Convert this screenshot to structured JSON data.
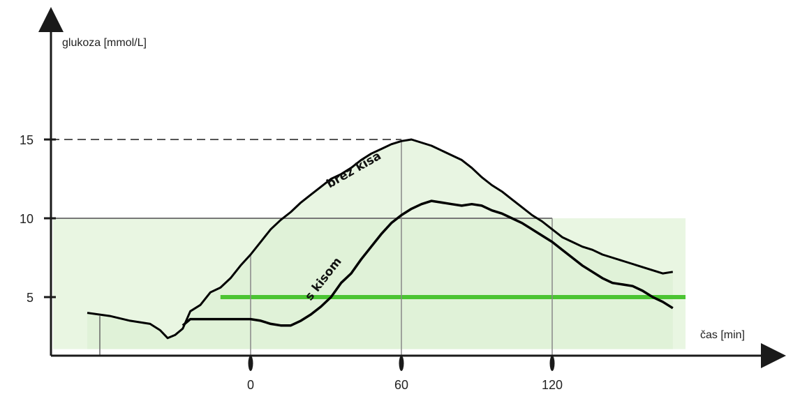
{
  "chart_data": {
    "type": "line",
    "title": "",
    "xlabel": "čas [min]",
    "ylabel": "glukoza [mmol/L]",
    "xlim": [
      -65,
      170
    ],
    "ylim": [
      0,
      20
    ],
    "x_ticks": [
      {
        "value": 0,
        "label": "0"
      },
      {
        "value": 60,
        "label": "60"
      },
      {
        "value": 120,
        "label": "120"
      }
    ],
    "y_ticks": [
      {
        "value": 5,
        "label": "5"
      },
      {
        "value": 10,
        "label": "10"
      },
      {
        "value": 15,
        "label": "15"
      }
    ],
    "reference_lines": {
      "y15_dashed": 15,
      "y10": 10,
      "y5_green": 5,
      "band": [
        1.7,
        10
      ]
    },
    "series": [
      {
        "name": "brez kisa",
        "color": "#000000",
        "x": [
          -65,
          -56,
          -48,
          -40,
          -36,
          -33,
          -30,
          -27,
          -24,
          -20,
          -16,
          -12,
          -8,
          -4,
          0,
          4,
          8,
          12,
          16,
          20,
          24,
          28,
          32,
          36,
          40,
          44,
          48,
          52,
          56,
          60,
          64,
          68,
          72,
          76,
          80,
          84,
          88,
          92,
          96,
          100,
          104,
          108,
          112,
          116,
          120,
          124,
          128,
          132,
          136,
          140,
          144,
          148,
          152,
          156,
          160,
          164,
          168
        ],
        "values": [
          4.0,
          3.8,
          3.5,
          3.3,
          2.9,
          2.4,
          2.6,
          3.0,
          4.1,
          4.5,
          5.3,
          5.6,
          6.2,
          7.0,
          7.7,
          8.5,
          9.3,
          9.9,
          10.4,
          11.0,
          11.5,
          12.0,
          12.5,
          12.8,
          13.2,
          13.7,
          14.1,
          14.4,
          14.7,
          14.9,
          15.0,
          14.8,
          14.6,
          14.3,
          14.0,
          13.7,
          13.2,
          12.6,
          12.1,
          11.7,
          11.2,
          10.7,
          10.2,
          9.8,
          9.3,
          8.8,
          8.5,
          8.2,
          8.0,
          7.7,
          7.5,
          7.3,
          7.1,
          6.9,
          6.7,
          6.5,
          6.6
        ]
      },
      {
        "name": "s kisom",
        "color": "#000000",
        "x": [
          -27,
          -24,
          -20,
          -16,
          -12,
          -8,
          -4,
          0,
          4,
          8,
          12,
          16,
          20,
          24,
          28,
          32,
          36,
          40,
          44,
          48,
          52,
          56,
          60,
          64,
          68,
          72,
          76,
          80,
          84,
          88,
          92,
          96,
          100,
          104,
          108,
          112,
          116,
          120,
          124,
          128,
          132,
          136,
          140,
          144,
          148,
          152,
          156,
          160,
          164,
          168
        ],
        "values": [
          3.2,
          3.6,
          3.6,
          3.6,
          3.6,
          3.6,
          3.6,
          3.6,
          3.5,
          3.3,
          3.2,
          3.2,
          3.5,
          3.9,
          4.4,
          5.0,
          5.9,
          6.5,
          7.4,
          8.2,
          9.0,
          9.7,
          10.2,
          10.6,
          10.9,
          11.1,
          11.0,
          10.9,
          10.8,
          10.9,
          10.8,
          10.5,
          10.3,
          10.0,
          9.7,
          9.3,
          8.9,
          8.5,
          8.0,
          7.5,
          7.0,
          6.6,
          6.2,
          5.9,
          5.8,
          5.7,
          5.4,
          5.0,
          4.7,
          4.3
        ]
      }
    ]
  }
}
